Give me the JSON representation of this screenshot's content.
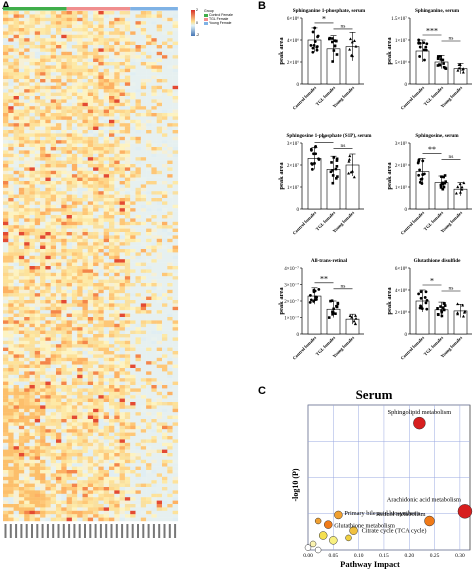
{
  "panels": {
    "a": "A",
    "b": "B",
    "c": "C"
  },
  "heatmap": {
    "legend_title": "Group",
    "legend_items": [
      {
        "label": "Control Female",
        "color": "#3fae4a"
      },
      {
        "label": "TGL Female",
        "color": "#f08e8e"
      },
      {
        "label": "Young Female",
        "color": "#7fb2e5"
      }
    ],
    "scale": {
      "max": "2",
      "mid": "0",
      "min": "-2"
    },
    "group_bar": [
      {
        "group": "Control Female",
        "color": "#3fae4a",
        "count": 12
      },
      {
        "group": "TGL Female",
        "color": "#f08e8e",
        "count": 12
      },
      {
        "group": "Young Female",
        "color": "#7fb2e5",
        "count": 9
      }
    ]
  },
  "bar_plots": [
    {
      "title": "Sphinganine 1-phosphate, serum",
      "ylabel": "peak area",
      "ticks": [
        "0",
        "2×10⁶",
        "4×10⁶",
        "6×10⁶"
      ],
      "ymax": 6,
      "means": [
        4.0,
        3.2,
        3.4
      ],
      "errs": [
        1.1,
        1.2,
        1.3
      ],
      "groups": [
        "Control females",
        "TGL females",
        "Young females"
      ],
      "sig": [
        {
          "from": 0,
          "to": 1,
          "label": "*"
        },
        {
          "from": 1,
          "to": 2,
          "label": "ns"
        }
      ]
    },
    {
      "title": "Sphinganine, serum",
      "ylabel": "peak area",
      "ticks": [
        "0",
        "5×10⁶",
        "1×10⁷",
        "1.5×10⁷"
      ],
      "ymax": 1.5,
      "means": [
        0.75,
        0.5,
        0.35
      ],
      "errs": [
        0.25,
        0.15,
        0.12
      ],
      "groups": [
        "Control females",
        "TGL females",
        "Young females"
      ],
      "sig": [
        {
          "from": 0,
          "to": 1,
          "label": "***"
        },
        {
          "from": 1,
          "to": 2,
          "label": "ns"
        }
      ]
    },
    {
      "title": "Sphingosine 1-phosphate (S1P), serum",
      "ylabel": "peak area",
      "ticks": [
        "0",
        "1×10⁷",
        "2×10⁷",
        "3×10⁷"
      ],
      "ymax": 3,
      "means": [
        2.3,
        1.8,
        2.0
      ],
      "errs": [
        0.5,
        0.6,
        0.5
      ],
      "groups": [
        "Control females",
        "TGL females",
        "Young females"
      ],
      "sig": [
        {
          "from": 0,
          "to": 1,
          "label": "*"
        },
        {
          "from": 1,
          "to": 2,
          "label": "ns"
        }
      ]
    },
    {
      "title": "Sphingosine, serum",
      "ylabel": "peak area",
      "ticks": [
        "0",
        "1×10⁵",
        "2×10⁵",
        "3×10⁵"
      ],
      "ymax": 3,
      "means": [
        1.7,
        1.2,
        0.9
      ],
      "errs": [
        0.6,
        0.3,
        0.3
      ],
      "groups": [
        "Control females",
        "TGL females",
        "Young females"
      ],
      "sig": [
        {
          "from": 0,
          "to": 1,
          "label": "**"
        },
        {
          "from": 1,
          "to": 2,
          "label": "ns"
        }
      ]
    },
    {
      "title": "All-trans-retinal",
      "ylabel": "peak area",
      "ticks": [
        "0",
        "1×10⁻⁷",
        "2×10⁻⁷",
        "3×10⁻⁷",
        "4×10⁻⁷"
      ],
      "ymax": 4,
      "means": [
        2.3,
        1.5,
        0.9
      ],
      "errs": [
        0.5,
        0.5,
        0.3
      ],
      "groups": [
        "Control females",
        "TGL females",
        "Young females"
      ],
      "sig": [
        {
          "from": 0,
          "to": 1,
          "label": "**"
        },
        {
          "from": 1,
          "to": 2,
          "label": "ns"
        }
      ]
    },
    {
      "title": "Glutathione disulfide",
      "ylabel": "peak area",
      "ticks": [
        "0",
        "2×10⁸",
        "4×10⁸",
        "6×10⁸"
      ],
      "ymax": 6,
      "means": [
        3.0,
        2.2,
        2.1
      ],
      "errs": [
        1.0,
        0.7,
        0.6
      ],
      "groups": [
        "Control females",
        "TGL females",
        "Young females"
      ],
      "sig": [
        {
          "from": 0,
          "to": 1,
          "label": "*"
        },
        {
          "from": 1,
          "to": 2,
          "label": "ns"
        }
      ]
    }
  ],
  "chart_data": {
    "type": "scatter",
    "title": "Serum",
    "xlabel": "Pathway Impact",
    "ylabel": "-log10 (P)",
    "xticks": [
      "0.00",
      "0.05",
      "0.10",
      "0.15",
      "0.20",
      "0.25",
      "0.30"
    ],
    "xlim": [
      0,
      0.32
    ],
    "ylim": [
      0,
      12
    ],
    "grid": true,
    "points": [
      {
        "label": "Sphingolipid metabolism",
        "x": 0.22,
        "y": 10.5,
        "r": 6,
        "color": "#d71e1e"
      },
      {
        "label": "Arachidonic acid metabolism",
        "x": 0.31,
        "y": 3.2,
        "r": 7,
        "color": "#d71e1e"
      },
      {
        "label": "Retinol metabolism",
        "x": 0.24,
        "y": 2.4,
        "r": 5,
        "color": "#f07a18"
      },
      {
        "label": "Primary bile acid biosynthesis",
        "x": 0.06,
        "y": 2.9,
        "r": 4,
        "color": "#f0a030"
      },
      {
        "label": "Glutathione metabolism",
        "x": 0.04,
        "y": 2.1,
        "r": 4,
        "color": "#f07a18"
      },
      {
        "label": "Citrate cycle (TCA cycle)",
        "x": 0.09,
        "y": 1.6,
        "r": 4,
        "color": "#f0c040"
      },
      {
        "label": "",
        "x": 0.02,
        "y": 2.4,
        "r": 3,
        "color": "#f0a030"
      },
      {
        "label": "",
        "x": 0.03,
        "y": 1.2,
        "r": 4,
        "color": "#f5e050"
      },
      {
        "label": "",
        "x": 0.05,
        "y": 0.8,
        "r": 4,
        "color": "#f8f080"
      },
      {
        "label": "",
        "x": 0.08,
        "y": 1.0,
        "r": 3,
        "color": "#f0d040"
      },
      {
        "label": "",
        "x": 0.01,
        "y": 0.5,
        "r": 3,
        "color": "#fbf3b0"
      },
      {
        "label": "",
        "x": 0.0,
        "y": 0.2,
        "r": 3,
        "color": "#ffffff"
      },
      {
        "label": "",
        "x": 0.02,
        "y": 0.0,
        "r": 3,
        "color": "#ffffff"
      }
    ]
  }
}
